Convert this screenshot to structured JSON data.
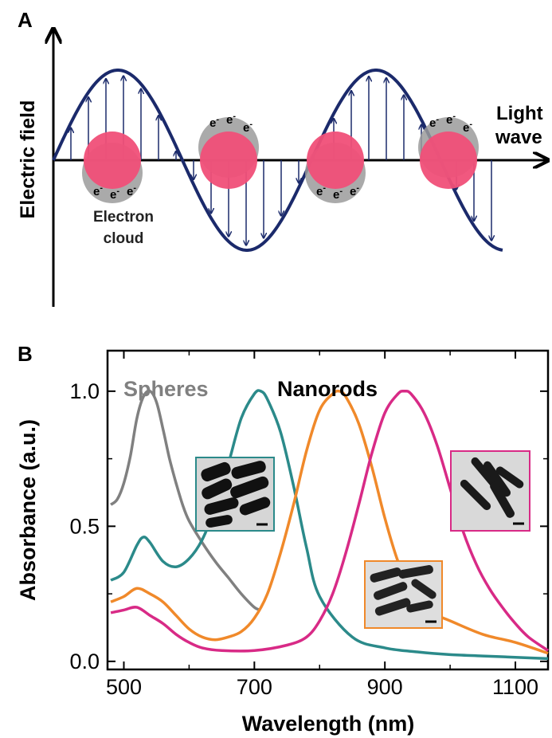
{
  "panelA": {
    "letter": "A",
    "ylabel": "Electric field",
    "xlabel_line1": "Light",
    "xlabel_line2": "wave",
    "electron_cloud_line1": "Electron",
    "electron_cloud_line2": "cloud",
    "electron_symbol": "e",
    "electron_charge": "-",
    "colors": {
      "wave": "#1b2a6b",
      "particle": "#f04f78",
      "cloud": "#9b9b9b"
    }
  },
  "panelB": {
    "letter": "B",
    "annotations": {
      "spheres": {
        "text": "Spheres",
        "color": "#808080"
      },
      "nanorods": {
        "text": "Nanorods",
        "color": "#000000"
      }
    },
    "inset_frame_colors": [
      "#2b8a8a",
      "#f0892a",
      "#d82a86"
    ]
  },
  "chart_data": {
    "type": "line",
    "title": "",
    "xlabel": "Wavelength (nm)",
    "ylabel": "Absorbance (a.u.)",
    "xlim": [
      475,
      1150
    ],
    "ylim": [
      -0.03,
      1.15
    ],
    "xticks": [
      500,
      700,
      900,
      1100
    ],
    "yticks": [
      "0.0",
      "0.5",
      "1.0"
    ],
    "ytick_values": [
      0,
      0.5,
      1.0
    ],
    "grid": false,
    "series": [
      {
        "color": "#808080",
        "x": [
          480,
          490,
          500,
          510,
          520,
          530,
          540,
          550,
          560,
          570,
          580,
          590,
          600,
          620,
          640,
          660,
          680,
          700,
          710
        ],
        "y": [
          0.58,
          0.6,
          0.66,
          0.76,
          0.9,
          0.98,
          1.0,
          0.96,
          0.86,
          0.75,
          0.66,
          0.58,
          0.52,
          0.44,
          0.37,
          0.31,
          0.25,
          0.2,
          0.19
        ]
      },
      {
        "color": "#2b8a8a",
        "x": [
          480,
          500,
          520,
          530,
          540,
          560,
          580,
          600,
          620,
          640,
          660,
          680,
          700,
          710,
          720,
          740,
          760,
          780,
          800,
          850,
          900,
          950,
          1000,
          1050,
          1100,
          1150
        ],
        "y": [
          0.3,
          0.33,
          0.43,
          0.46,
          0.44,
          0.37,
          0.35,
          0.38,
          0.45,
          0.57,
          0.73,
          0.9,
          0.99,
          1.0,
          0.97,
          0.85,
          0.65,
          0.42,
          0.24,
          0.09,
          0.05,
          0.035,
          0.025,
          0.02,
          0.015,
          0.01
        ]
      },
      {
        "color": "#f0892a",
        "x": [
          480,
          500,
          520,
          540,
          560,
          580,
          600,
          620,
          640,
          660,
          680,
          700,
          720,
          740,
          760,
          780,
          800,
          820,
          830,
          840,
          860,
          880,
          900,
          920,
          940,
          960,
          980,
          1000,
          1050,
          1100,
          1150
        ],
        "y": [
          0.22,
          0.24,
          0.27,
          0.25,
          0.22,
          0.17,
          0.12,
          0.09,
          0.08,
          0.09,
          0.11,
          0.16,
          0.25,
          0.4,
          0.58,
          0.78,
          0.93,
          0.99,
          1.0,
          0.98,
          0.88,
          0.72,
          0.53,
          0.37,
          0.26,
          0.2,
          0.17,
          0.15,
          0.1,
          0.07,
          0.03
        ]
      },
      {
        "color": "#d82a86",
        "x": [
          480,
          500,
          520,
          540,
          560,
          580,
          600,
          620,
          650,
          700,
          750,
          780,
          800,
          820,
          840,
          860,
          880,
          900,
          920,
          930,
          940,
          960,
          980,
          1000,
          1020,
          1040,
          1060,
          1080,
          1100,
          1120,
          1150
        ],
        "y": [
          0.18,
          0.19,
          0.2,
          0.17,
          0.14,
          0.1,
          0.07,
          0.05,
          0.04,
          0.04,
          0.06,
          0.09,
          0.15,
          0.25,
          0.4,
          0.58,
          0.77,
          0.92,
          0.99,
          1.0,
          0.99,
          0.92,
          0.8,
          0.64,
          0.48,
          0.36,
          0.27,
          0.2,
          0.14,
          0.09,
          0.04
        ]
      }
    ]
  }
}
